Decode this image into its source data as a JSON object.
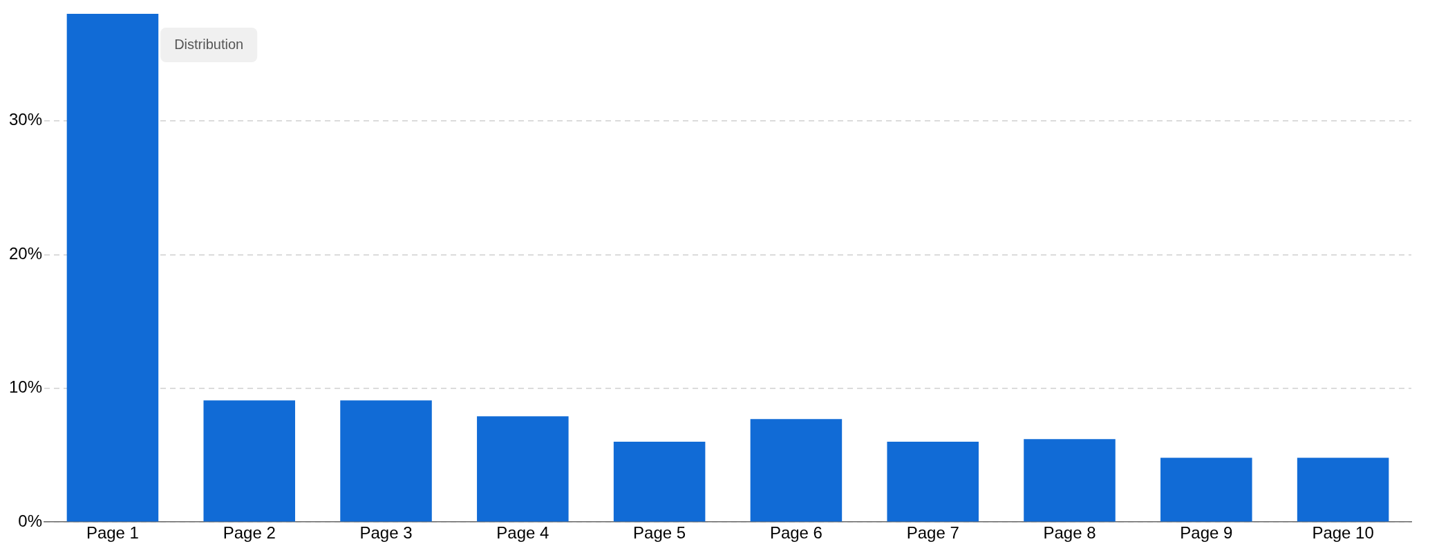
{
  "chart_data": {
    "type": "bar",
    "annotations": [
      "Distribution"
    ],
    "categories": [
      "Page 1",
      "Page 2",
      "Page 3",
      "Page 4",
      "Page 5",
      "Page 6",
      "Page 7",
      "Page 8",
      "Page 9",
      "Page 10"
    ],
    "values": [
      38,
      9.1,
      9.1,
      7.9,
      6.0,
      7.7,
      6.0,
      6.2,
      4.8,
      4.8
    ],
    "color": "#116bd6",
    "ylim": [
      0,
      38
    ],
    "yticks": [
      {
        "value": 0,
        "label": "0%"
      },
      {
        "value": 10,
        "label": "10%"
      },
      {
        "value": 20,
        "label": "20%"
      },
      {
        "value": 30,
        "label": "30%"
      }
    ],
    "grid": "y",
    "legend": false
  }
}
